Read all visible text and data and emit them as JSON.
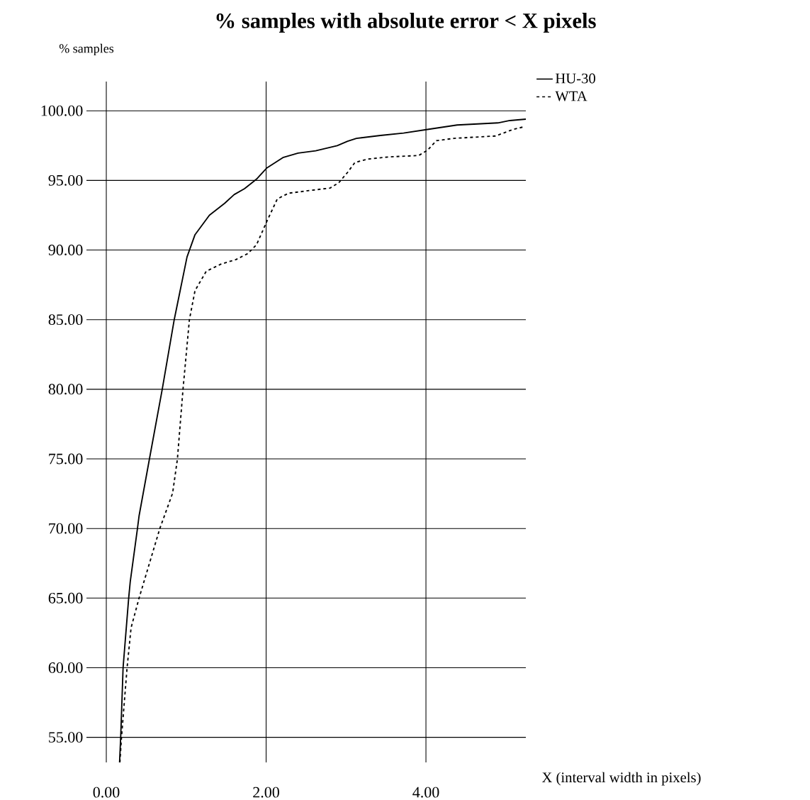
{
  "chart_data": {
    "type": "line",
    "title": "% samples with absolute error < X pixels",
    "xlabel": "X (interval width in pixels)",
    "ylabel": "% samples",
    "xlim": [
      0,
      5.25
    ],
    "ylim": [
      53.2,
      102.1
    ],
    "xticks": [
      {
        "value": 0,
        "label": "0.00"
      },
      {
        "value": 2,
        "label": "2.00"
      },
      {
        "value": 4,
        "label": "4.00"
      }
    ],
    "yticks": [
      {
        "value": 55,
        "label": "55.00"
      },
      {
        "value": 60,
        "label": "60.00"
      },
      {
        "value": 65,
        "label": "65.00"
      },
      {
        "value": 70,
        "label": "70.00"
      },
      {
        "value": 75,
        "label": "75.00"
      },
      {
        "value": 80,
        "label": "80.00"
      },
      {
        "value": 85,
        "label": "85.00"
      },
      {
        "value": 90,
        "label": "90.00"
      },
      {
        "value": 95,
        "label": "95.00"
      },
      {
        "value": 100,
        "label": "100.00"
      }
    ],
    "grid": true,
    "legend": "top right",
    "series": [
      {
        "name": "HU-30",
        "color": "#000000",
        "line_style": "solid",
        "x": [
          0.166,
          0.18,
          0.21,
          0.28,
          0.3,
          0.39,
          0.41,
          0.54,
          0.7,
          0.85,
          1.01,
          1.11,
          1.29,
          1.48,
          1.6,
          1.73,
          1.88,
          2.01,
          2.21,
          2.4,
          2.62,
          2.89,
          3.02,
          3.13,
          3.43,
          3.72,
          4.02,
          4.39,
          4.9,
          5.05,
          5.25
        ],
        "values": [
          53.2,
          55,
          60,
          65,
          66.2,
          70,
          70.9,
          75,
          80,
          85,
          89.5,
          91.1,
          92.5,
          93.35,
          93.98,
          94.41,
          95.09,
          95.9,
          96.64,
          96.96,
          97.13,
          97.5,
          97.81,
          98.02,
          98.23,
          98.4,
          98.66,
          98.98,
          99.13,
          99.3,
          99.4
        ]
      },
      {
        "name": "WTA",
        "color": "#000000",
        "line_style": "dashed",
        "x": [
          0.17,
          0.19,
          0.26,
          0.31,
          0.41,
          0.67,
          0.83,
          0.89,
          0.96,
          1.04,
          1.11,
          1.25,
          1.44,
          1.62,
          1.77,
          1.88,
          2.01,
          2.14,
          2.28,
          2.58,
          2.8,
          2.91,
          3.02,
          3.11,
          3.27,
          3.54,
          3.91,
          4.02,
          4.13,
          4.35,
          4.87,
          5.09,
          5.24
        ],
        "values": [
          53.2,
          55,
          60,
          62.87,
          65,
          70,
          72.54,
          75,
          80,
          85,
          87.08,
          88.47,
          89.0,
          89.31,
          89.74,
          90.38,
          92.07,
          93.67,
          94.08,
          94.3,
          94.45,
          94.84,
          95.58,
          96.28,
          96.53,
          96.69,
          96.79,
          97.17,
          97.85,
          98.02,
          98.19,
          98.66,
          98.87
        ]
      }
    ]
  }
}
